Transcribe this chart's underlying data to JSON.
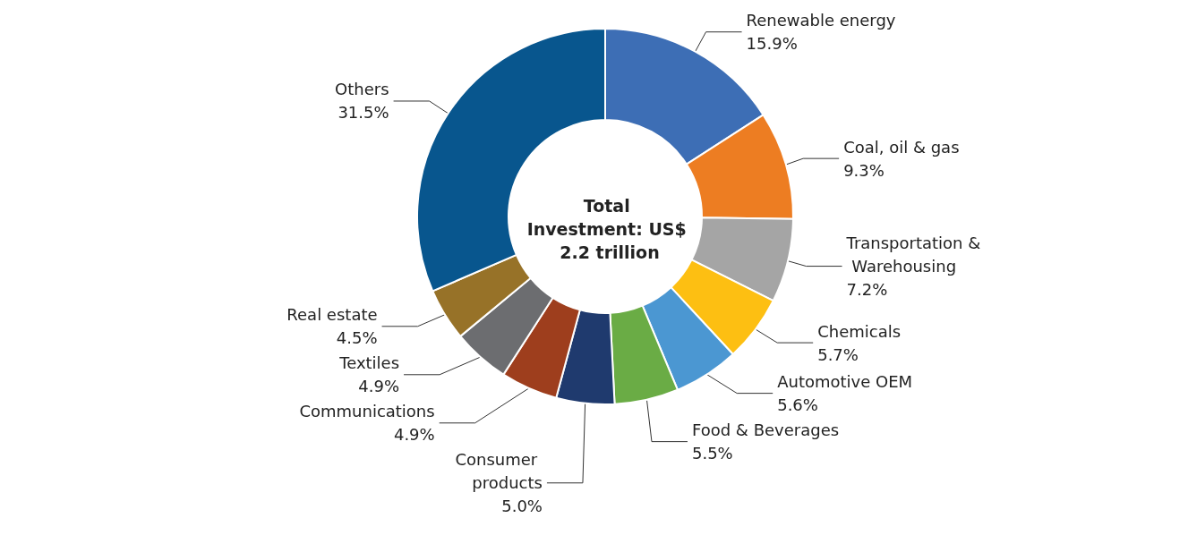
{
  "chart_data": {
    "type": "donut",
    "title": "Total Investment: US$ 2.2 trillion",
    "categories": [
      "Renewable energy",
      "Coal, oil & gas",
      "Transportation & Warehousing",
      "Chemicals",
      "Automotive OEM",
      "Food & Beverages",
      "Consumer products",
      "Communications",
      "Textiles",
      "Real estate",
      "Others"
    ],
    "values": [
      15.9,
      9.3,
      7.2,
      5.7,
      5.6,
      5.5,
      5.0,
      4.9,
      4.9,
      4.5,
      31.5
    ],
    "value_labels": [
      "15.9%",
      "9.3%",
      "7.2%",
      "5.7%",
      "5.6%",
      "5.5%",
      "5.0%",
      "4.9%",
      "4.9%",
      "4.5%",
      "31.5%"
    ],
    "colors": [
      "#3d6eb5",
      "#ed7d22",
      "#a5a5a5",
      "#fdbf12",
      "#4b97d2",
      "#6aac45",
      "#1f3a6e",
      "#9e3e1d",
      "#6c6d70",
      "#977228",
      "#08568e"
    ],
    "legend": false
  }
}
